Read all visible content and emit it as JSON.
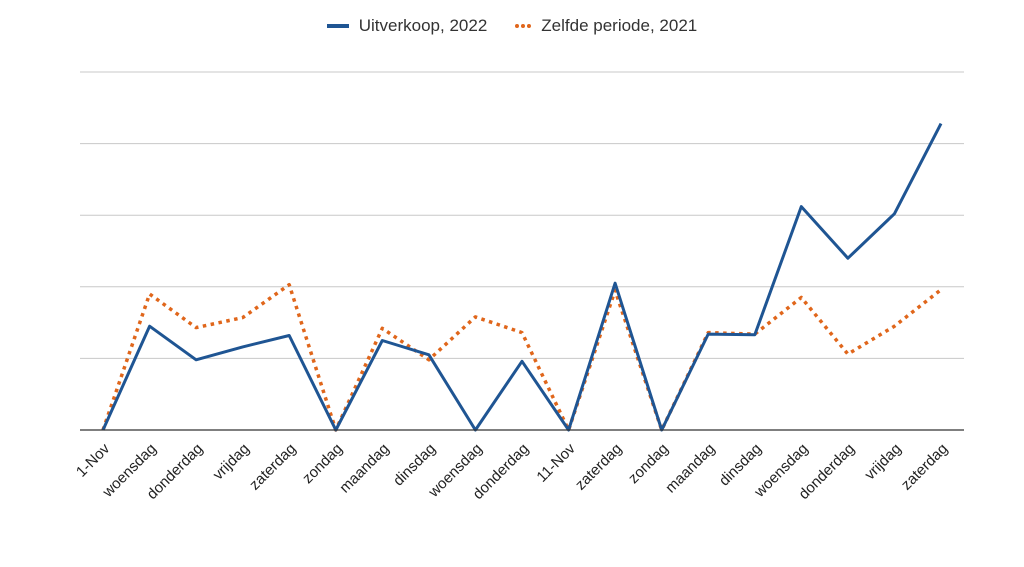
{
  "legend": {
    "series_a": "Uitverkoop, 2022",
    "series_b": "Zelfde periode, 2021"
  },
  "colors": {
    "series_a": "#1f5593",
    "series_b": "#e0661b",
    "grid": "#c8c8c8",
    "axis": "#333333"
  },
  "chart_data": {
    "type": "line",
    "title": "",
    "xlabel": "",
    "ylabel": "",
    "ylim": [
      0,
      50
    ],
    "y_gridlines": [
      10,
      20,
      30,
      40,
      50
    ],
    "grid": true,
    "y_tick_labels_visible": false,
    "legend_position": "top",
    "categories": [
      "1-Nov",
      "woensdag",
      "donderdag",
      "vrijdag",
      "zaterdag",
      "zondag",
      "maandag",
      "dinsdag",
      "woensdag",
      "donderdag",
      "11-Nov",
      "zaterdag",
      "zondag",
      "maandag",
      "dinsdag",
      "woensdag",
      "donderdag",
      "vrijdag",
      "zaterdag"
    ],
    "series": [
      {
        "name": "Uitverkoop, 2022",
        "style": "solid",
        "values": [
          0,
          14.5,
          9.8,
          11.6,
          13.2,
          0,
          12.5,
          10.5,
          0,
          9.6,
          0,
          20.5,
          0,
          13.4,
          13.3,
          31.2,
          24.0,
          30.2,
          42.8
        ]
      },
      {
        "name": "Zelfde periode, 2021",
        "style": "dotted",
        "values": [
          0,
          19.0,
          14.3,
          15.7,
          20.3,
          0,
          14.2,
          9.8,
          15.8,
          13.6,
          0,
          19.5,
          0,
          13.6,
          13.4,
          18.5,
          10.6,
          14.5,
          19.6
        ]
      }
    ]
  }
}
